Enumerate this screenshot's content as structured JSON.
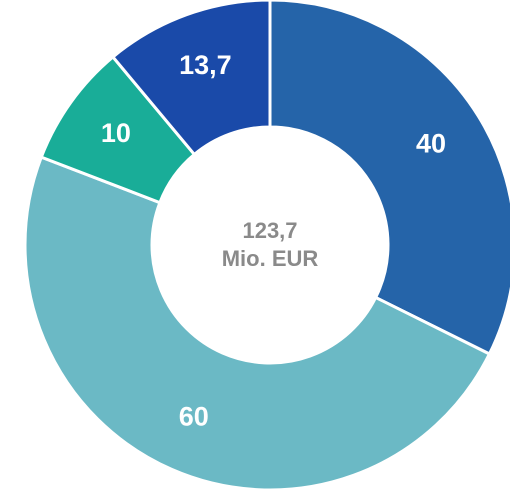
{
  "chart_data": {
    "type": "donut",
    "values": [
      40,
      60,
      10,
      13.7
    ],
    "value_labels": [
      "40",
      "60",
      "10",
      "13,7"
    ],
    "colors": [
      "#2564a9",
      "#6bb9c5",
      "#19ad98",
      "#1a4aa9"
    ],
    "center_text": [
      "123,7",
      "Mio. EUR"
    ]
  }
}
